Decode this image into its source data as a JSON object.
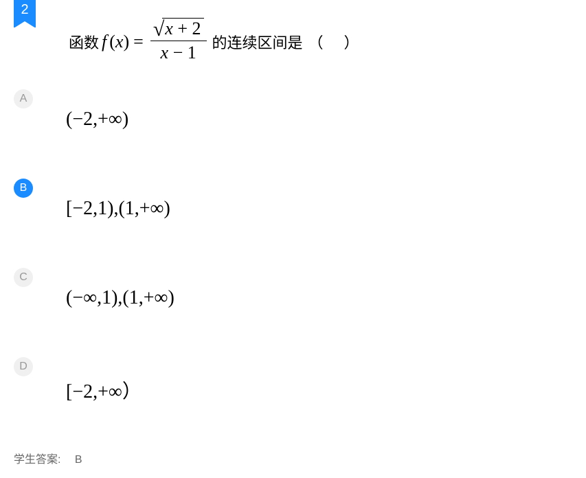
{
  "question": {
    "number": "2",
    "prefix": "函数 ",
    "func_name": "f",
    "func_var": "x",
    "equals": "=",
    "sqrt_expr_var": "x",
    "sqrt_expr_op": " + ",
    "sqrt_expr_num": "2",
    "denom_var": "x",
    "denom_op": " − ",
    "denom_num": "1",
    "suffix": "的连续区间是",
    "paren_open": "（",
    "paren_close": "）"
  },
  "options": {
    "a": {
      "letter": "A",
      "content": "(−2,+∞)"
    },
    "b": {
      "letter": "B",
      "content": "[−2,1),(1,+∞)"
    },
    "c": {
      "letter": "C",
      "content": "(−∞,1),(1,+∞)"
    },
    "d": {
      "letter": "D",
      "content": "[−2,+∞）"
    }
  },
  "student_answer": {
    "label": "学生答案:",
    "value": "B"
  },
  "colors": {
    "badge_blue": "#1a8cff",
    "badge_gray": "#f0f0f0",
    "text_gray": "#999999",
    "text_dark_gray": "#666666",
    "text_black": "#000000",
    "background": "#ffffff"
  },
  "typography": {
    "question_fontsize": 22,
    "option_fontsize": 28,
    "badge_fontsize": 16,
    "answer_fontsize": 16
  }
}
